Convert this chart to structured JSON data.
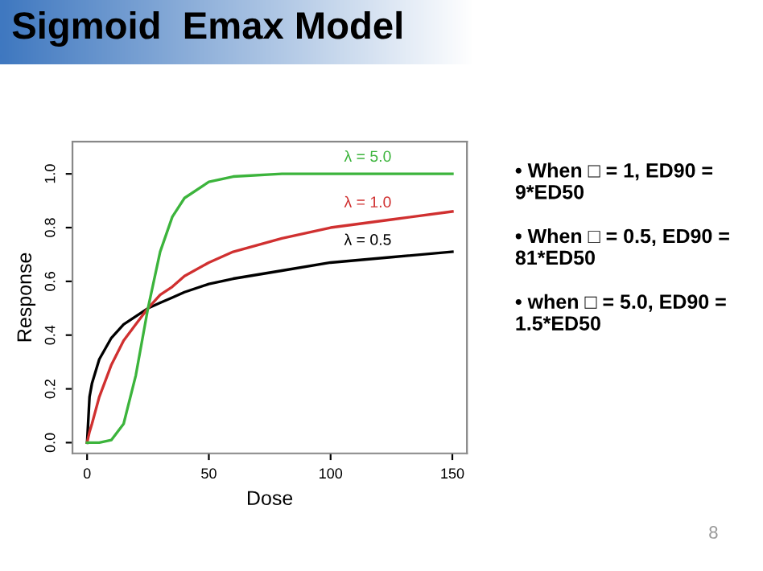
{
  "chart_data": {
    "type": "line",
    "title": "Sigmoid  Emax Model",
    "xlabel": "Dose",
    "ylabel": "Response",
    "x": [
      0,
      1,
      2,
      5,
      10,
      15,
      20,
      25,
      30,
      35,
      40,
      50,
      60,
      80,
      100,
      125,
      150
    ],
    "series": [
      {
        "name": "λ = 0.5",
        "color": "#000000",
        "values": [
          0,
          0.17,
          0.22,
          0.31,
          0.39,
          0.44,
          0.47,
          0.5,
          0.52,
          0.54,
          0.56,
          0.59,
          0.61,
          0.64,
          0.67,
          0.69,
          0.71
        ]
      },
      {
        "name": "λ = 1.0",
        "color": "#d03030",
        "values": [
          0,
          0.04,
          0.07,
          0.17,
          0.29,
          0.38,
          0.44,
          0.5,
          0.55,
          0.58,
          0.62,
          0.67,
          0.71,
          0.76,
          0.8,
          0.83,
          0.86
        ]
      },
      {
        "name": "λ = 5.0",
        "color": "#3cb43c",
        "values": [
          0,
          0,
          0,
          0,
          0.01,
          0.07,
          0.25,
          0.5,
          0.71,
          0.84,
          0.91,
          0.97,
          0.99,
          1.0,
          1.0,
          1.0,
          1.0
        ]
      }
    ],
    "xlim": [
      -6,
      156
    ],
    "ylim": [
      -0.04,
      1.12
    ],
    "xticks": [
      0,
      50,
      100,
      150
    ],
    "yticks": [
      {
        "value": 0,
        "label": "0.0"
      },
      0.2,
      0.4,
      0.6,
      0.8,
      {
        "value": 1,
        "label": "1.0"
      }
    ],
    "grid": false,
    "legend": false,
    "marker": "none",
    "line_style": "solid",
    "annotations": [
      "• When □ = 1, ED90 = 9*ED50",
      "• When □ = 0.5, ED90 = 81*ED50",
      "• when □ = 5.0, ED90 = 1.5*ED50",
      "8"
    ]
  }
}
